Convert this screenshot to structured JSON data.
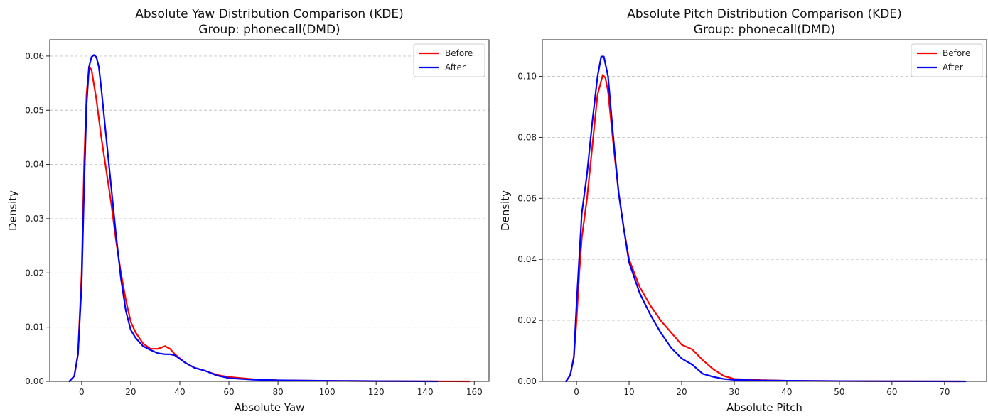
{
  "colors": {
    "before": "#ff0000",
    "after": "#0000ff"
  },
  "chart_data": [
    {
      "type": "line",
      "title": "Absolute Yaw Distribution Comparison (KDE)",
      "subtitle": "Group: phonecall(DMD)",
      "xlabel": "Absolute Yaw",
      "ylabel": "Density",
      "xlim": [
        -13,
        166
      ],
      "ylim": [
        0,
        0.063
      ],
      "xticks": [
        0,
        20,
        40,
        60,
        80,
        100,
        120,
        140,
        160
      ],
      "yticks": [
        0,
        0.01,
        0.02,
        0.03,
        0.04,
        0.05,
        0.06
      ],
      "ytick_labels": [
        "0.00",
        "0.01",
        "0.02",
        "0.03",
        "0.04",
        "0.05",
        "0.06"
      ],
      "grid": "y-dashed",
      "legend": "top-right",
      "series": [
        {
          "name": "Before",
          "color": "#ff0000",
          "points": [
            [
              -5,
              0
            ],
            [
              -3,
              0.001
            ],
            [
              -1.5,
              0.005
            ],
            [
              0,
              0.02
            ],
            [
              1,
              0.04
            ],
            [
              2,
              0.053
            ],
            [
              3,
              0.058
            ],
            [
              4,
              0.0575
            ],
            [
              6,
              0.052
            ],
            [
              8,
              0.045
            ],
            [
              10,
              0.039
            ],
            [
              12,
              0.033
            ],
            [
              14,
              0.026
            ],
            [
              16,
              0.02
            ],
            [
              18,
              0.015
            ],
            [
              20,
              0.011
            ],
            [
              22,
              0.009
            ],
            [
              25,
              0.007
            ],
            [
              28,
              0.006
            ],
            [
              31,
              0.006
            ],
            [
              34,
              0.0065
            ],
            [
              36,
              0.006
            ],
            [
              38,
              0.005
            ],
            [
              42,
              0.0035
            ],
            [
              46,
              0.0025
            ],
            [
              50,
              0.002
            ],
            [
              55,
              0.0012
            ],
            [
              60,
              0.0008
            ],
            [
              70,
              0.0004
            ],
            [
              80,
              0.0002
            ],
            [
              100,
              0.0001
            ],
            [
              120,
              5e-05
            ],
            [
              158,
              0
            ]
          ]
        },
        {
          "name": "After",
          "color": "#0000ff",
          "points": [
            [
              -5,
              0
            ],
            [
              -3,
              0.001
            ],
            [
              -1.5,
              0.005
            ],
            [
              0,
              0.018
            ],
            [
              1,
              0.036
            ],
            [
              2,
              0.051
            ],
            [
              3,
              0.058
            ],
            [
              4,
              0.0598
            ],
            [
              5,
              0.0602
            ],
            [
              6,
              0.0598
            ],
            [
              7,
              0.058
            ],
            [
              8,
              0.054
            ],
            [
              10,
              0.045
            ],
            [
              12,
              0.036
            ],
            [
              14,
              0.027
            ],
            [
              16,
              0.019
            ],
            [
              18,
              0.013
            ],
            [
              20,
              0.0095
            ],
            [
              22,
              0.008
            ],
            [
              25,
              0.0065
            ],
            [
              28,
              0.0058
            ],
            [
              31,
              0.0052
            ],
            [
              34,
              0.005
            ],
            [
              36,
              0.005
            ],
            [
              38,
              0.0048
            ],
            [
              42,
              0.0035
            ],
            [
              46,
              0.0025
            ],
            [
              50,
              0.002
            ],
            [
              55,
              0.0011
            ],
            [
              60,
              0.0006
            ],
            [
              70,
              0.0003
            ],
            [
              80,
              0.0002
            ],
            [
              100,
              0.0001
            ],
            [
              120,
              5e-05
            ],
            [
              145,
              0
            ]
          ]
        }
      ]
    },
    {
      "type": "line",
      "title": "Absolute Pitch Distribution Comparison (KDE)",
      "subtitle": "Group: phonecall(DMD)",
      "xlabel": "Absolute Pitch",
      "ylabel": "Density",
      "xlim": [
        -6.5,
        78
      ],
      "ylim": [
        0,
        0.112
      ],
      "xticks": [
        0,
        10,
        20,
        30,
        40,
        50,
        60,
        70
      ],
      "yticks": [
        0,
        0.02,
        0.04,
        0.06,
        0.08,
        0.1
      ],
      "ytick_labels": [
        "0.00",
        "0.02",
        "0.04",
        "0.06",
        "0.08",
        "0.10"
      ],
      "grid": "y-dashed",
      "legend": "top-right",
      "series": [
        {
          "name": "Before",
          "color": "#ff0000",
          "points": [
            [
              -2,
              0
            ],
            [
              -1.2,
              0.002
            ],
            [
              -0.5,
              0.008
            ],
            [
              0,
              0.02
            ],
            [
              0.5,
              0.035
            ],
            [
              1,
              0.047
            ],
            [
              2,
              0.06
            ],
            [
              3,
              0.077
            ],
            [
              4,
              0.094
            ],
            [
              5,
              0.1005
            ],
            [
              5.5,
              0.0995
            ],
            [
              6,
              0.095
            ],
            [
              7,
              0.078
            ],
            [
              8,
              0.062
            ],
            [
              9,
              0.05
            ],
            [
              10,
              0.04
            ],
            [
              12,
              0.031
            ],
            [
              14,
              0.025
            ],
            [
              16,
              0.02
            ],
            [
              18,
              0.016
            ],
            [
              20,
              0.012
            ],
            [
              22,
              0.0105
            ],
            [
              24,
              0.007
            ],
            [
              26,
              0.004
            ],
            [
              28,
              0.0018
            ],
            [
              30,
              0.0008
            ],
            [
              35,
              0.0004
            ],
            [
              40,
              0.0002
            ],
            [
              50,
              0.0001
            ],
            [
              60,
              5e-05
            ],
            [
              73,
              0
            ]
          ]
        },
        {
          "name": "After",
          "color": "#0000ff",
          "points": [
            [
              -2,
              0
            ],
            [
              -1.2,
              0.002
            ],
            [
              -0.5,
              0.008
            ],
            [
              0,
              0.025
            ],
            [
              0.5,
              0.04
            ],
            [
              1,
              0.055
            ],
            [
              2,
              0.068
            ],
            [
              3,
              0.085
            ],
            [
              4,
              0.1
            ],
            [
              4.7,
              0.1065
            ],
            [
              5.2,
              0.1065
            ],
            [
              6,
              0.1
            ],
            [
              7,
              0.08
            ],
            [
              8,
              0.062
            ],
            [
              9,
              0.05
            ],
            [
              10,
              0.039
            ],
            [
              12,
              0.029
            ],
            [
              14,
              0.022
            ],
            [
              16,
              0.016
            ],
            [
              18,
              0.011
            ],
            [
              20,
              0.0075
            ],
            [
              22,
              0.0055
            ],
            [
              24,
              0.0025
            ],
            [
              26,
              0.0015
            ],
            [
              28,
              0.0008
            ],
            [
              30,
              0.0005
            ],
            [
              35,
              0.0003
            ],
            [
              40,
              0.0002
            ],
            [
              50,
              0.0001
            ],
            [
              60,
              5e-05
            ],
            [
              74,
              0
            ]
          ]
        }
      ]
    }
  ]
}
